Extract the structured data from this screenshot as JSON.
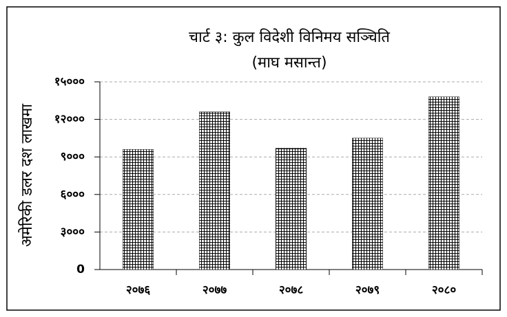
{
  "chart_data": {
    "type": "bar",
    "title": "चार्ट ३: कुल विदेशी विनिमय सञ्चिति",
    "subtitle": "(माघ मसान्त)",
    "y_label": "अमेरिकी डलर दश लाखमा",
    "categories": [
      "२०७६",
      "२०७७",
      "२०७८",
      "२०७९",
      "२०८०"
    ],
    "values": [
      9600,
      12600,
      9700,
      10500,
      13800
    ],
    "color": "#000000",
    "ylim": [
      0,
      15000
    ],
    "yticks": [
      {
        "value": 0,
        "label": "0"
      },
      {
        "value": 3000,
        "label": "३०००"
      },
      {
        "value": 6000,
        "label": "६०००"
      },
      {
        "value": 9000,
        "label": "९०००"
      },
      {
        "value": 12000,
        "label": "१२०००"
      },
      {
        "value": 15000,
        "label": "१५०००"
      }
    ],
    "grid": true
  }
}
